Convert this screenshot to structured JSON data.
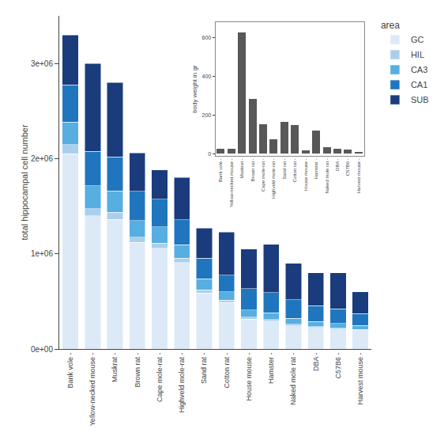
{
  "chart_data": [
    {
      "type": "bar",
      "stacked": true,
      "categories": [
        "Bank vole -",
        "Yellow-necked mouse -",
        "Muskrat -",
        "Brown rat -",
        "Cape mole-rat -",
        "Highveld mole-rat -",
        "Sand rat -",
        "Cotton rat -",
        "House mouse -",
        "Hamster -",
        "Naked mole rat -",
        "DBA -",
        "C57B6 -",
        "Harvest mouse -"
      ],
      "series": [
        {
          "name": "GC",
          "color": "#dce9f7",
          "values": [
            2050000,
            1400000,
            1360000,
            1120000,
            1060000,
            910000,
            590000,
            490000,
            315000,
            295000,
            245000,
            225000,
            210000,
            195000
          ]
        },
        {
          "name": "HIL",
          "color": "#aacfec",
          "values": [
            95000,
            75000,
            75000,
            55000,
            52000,
            42000,
            32000,
            22000,
            18000,
            16000,
            13000,
            11000,
            10000,
            9000
          ]
        },
        {
          "name": "CA3",
          "color": "#57aee0",
          "values": [
            240000,
            240000,
            225000,
            175000,
            170000,
            145000,
            115000,
            88000,
            78000,
            68000,
            63000,
            53000,
            48000,
            43000
          ]
        },
        {
          "name": "CA1",
          "color": "#1f76be",
          "values": [
            390000,
            360000,
            360000,
            305000,
            290000,
            260000,
            215000,
            175000,
            225000,
            215000,
            195000,
            165000,
            155000,
            125000
          ]
        },
        {
          "name": "SUB",
          "color": "#1a3c7c",
          "values": [
            525000,
            925000,
            780000,
            405000,
            308000,
            443000,
            318000,
            455000,
            414000,
            506000,
            384000,
            346000,
            377000,
            228000
          ]
        }
      ],
      "ylabel": "total hippocampal cell number",
      "ylim": [
        0,
        3500000
      ],
      "yticks": [
        {
          "value": 0,
          "label": "0e+00"
        },
        {
          "value": 1000000,
          "label": "1e+06"
        },
        {
          "value": 2000000,
          "label": "2e+06"
        },
        {
          "value": 3000000,
          "label": "3e+06"
        }
      ],
      "grid": false,
      "legend": "upper right",
      "legend_title": "area"
    },
    {
      "type": "bar",
      "categories": [
        "Bank vole -",
        "Yellow-necked mouse -",
        "Muskrat -",
        "Brown rat -",
        "Cape mole-rat -",
        "Highveld mole-rat -",
        "Sand rat -",
        "Cotton rat -",
        "House mouse -",
        "Hamster -",
        "Naked mole rat -",
        "DBA -",
        "C57B6 -",
        "Harvest mouse -"
      ],
      "values": [
        26,
        28,
        630,
        285,
        155,
        75,
        165,
        150,
        20,
        120,
        35,
        28,
        22,
        9
      ],
      "color": "#585858",
      "ylabel": "body weight in gr",
      "ylim": [
        -10,
        680
      ],
      "yticks": [
        0,
        200,
        400,
        600
      ],
      "grid": false
    }
  ]
}
